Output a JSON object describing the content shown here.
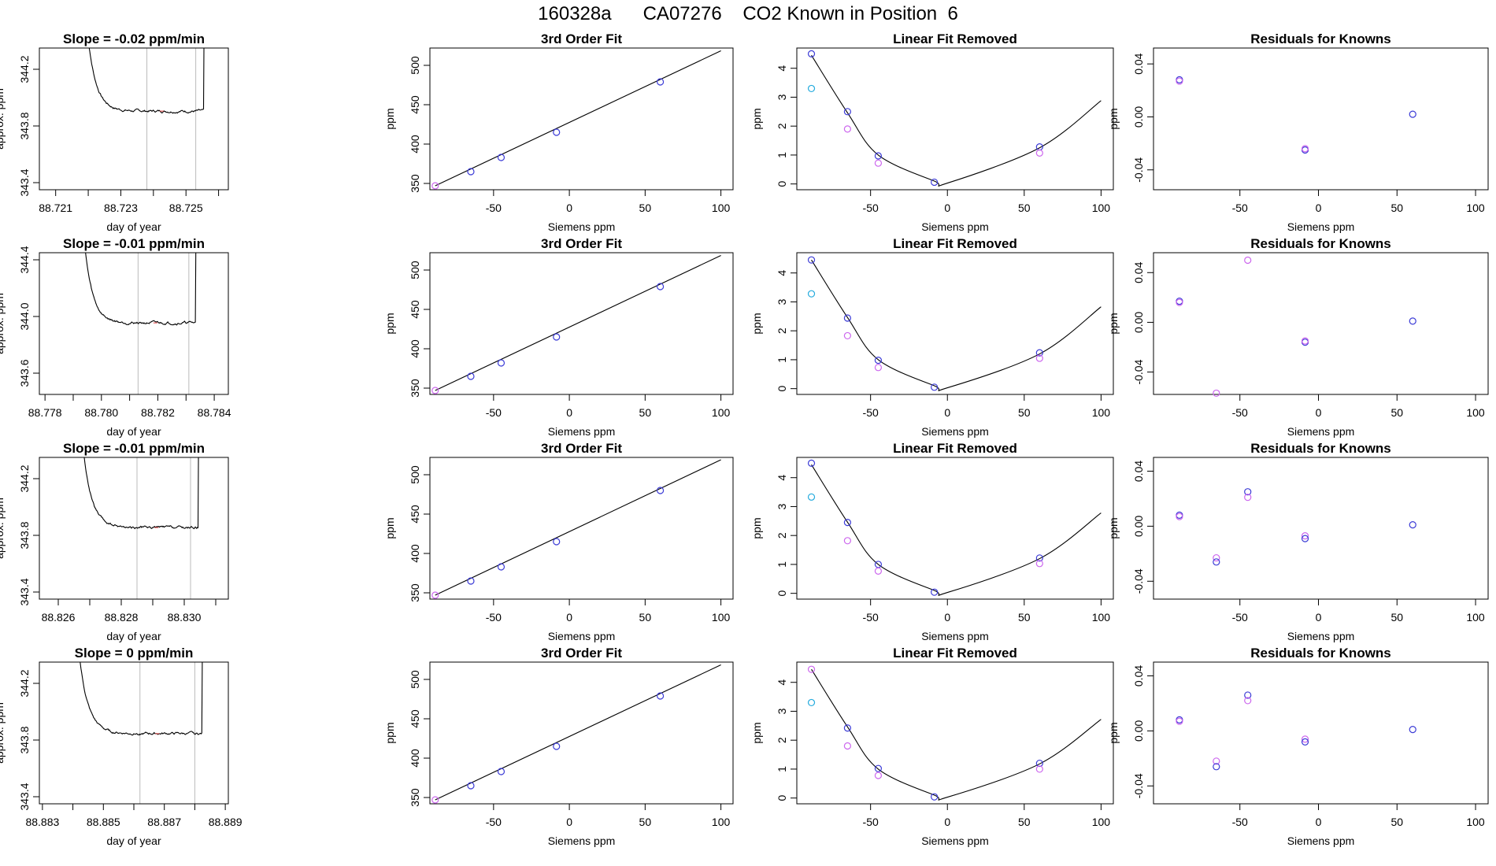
{
  "page": {
    "title": "160328a      CA07276    CO2 Known in Position  6"
  },
  "colors": {
    "known_dark": "#3b3bd6",
    "known_light": "#cc66ee",
    "outlier": "#22aadd",
    "red": "#e04040",
    "vline": "#bbbbbb",
    "line": "#000000"
  },
  "chart_data": [
    {
      "panel": "time",
      "row": 0,
      "type": "line",
      "title": "Slope =  -0.02  ppm/min",
      "xlabel": "day of year",
      "ylabel": "approx. ppm",
      "xlim": [
        88.7205,
        88.7263
      ],
      "ylim": [
        343.35,
        344.35
      ],
      "xticks": [
        88.721,
        88.722,
        88.723,
        88.724,
        88.725,
        88.726
      ],
      "xtick_labels": [
        "88.721",
        "",
        "88.723",
        "",
        "88.725",
        ""
      ],
      "yticks": [
        343.4,
        343.8,
        344.2
      ],
      "ytick_labels": [
        "343.4",
        "343.8",
        "344.2"
      ],
      "vlines": [
        88.7238,
        88.7253
      ],
      "curve": {
        "start": 88.7219,
        "end": 88.7256,
        "level": 343.905,
        "rise_to": 344.6
      }
    },
    {
      "panel": "fit",
      "row": 0,
      "type": "scatter",
      "title": "3rd Order Fit",
      "xlabel": "Siemens ppm",
      "ylabel": "ppm",
      "xlim": [
        -92,
        108
      ],
      "ylim": [
        342,
        522
      ],
      "xticks": [
        -50,
        0,
        50,
        100
      ],
      "yticks": [
        350,
        400,
        450,
        500
      ],
      "line": [
        [
          -88.5,
          347
        ],
        [
          100,
          518.5
        ]
      ],
      "points": [
        [
          -88.5,
          347,
          "light"
        ],
        [
          -65,
          365,
          "dark"
        ],
        [
          -45,
          383,
          "dark"
        ],
        [
          -8.5,
          415,
          "dark"
        ],
        [
          60,
          479,
          "dark"
        ]
      ]
    },
    {
      "panel": "linrem",
      "row": 0,
      "type": "scatter",
      "title": "Linear Fit Removed",
      "xlabel": "Siemens ppm",
      "ylabel": "ppm",
      "xlim": [
        -98,
        108
      ],
      "ylim": [
        -0.2,
        4.7
      ],
      "xticks": [
        -50,
        0,
        50,
        100
      ],
      "yticks": [
        0,
        1,
        2,
        3,
        4
      ],
      "curve": [
        [
          -88.5,
          4.45
        ],
        [
          -65,
          2.46
        ],
        [
          -45,
          1.0
        ],
        [
          -8.5,
          0.1
        ],
        [
          0,
          0.03
        ],
        [
          60,
          1.25
        ],
        [
          100,
          2.88
        ]
      ],
      "points": [
        [
          -88.5,
          4.5,
          "dark"
        ],
        [
          -88.5,
          3.3,
          "outlier"
        ],
        [
          -65,
          2.5,
          "dark"
        ],
        [
          -65,
          1.9,
          "light"
        ],
        [
          -45,
          0.97,
          "dark"
        ],
        [
          -45,
          0.72,
          "light"
        ],
        [
          -8.5,
          0.06,
          "dark"
        ],
        [
          60,
          1.28,
          "dark"
        ],
        [
          60,
          1.07,
          "light"
        ]
      ]
    },
    {
      "panel": "resid",
      "row": 0,
      "type": "scatter",
      "title": "Residuals for Knowns",
      "xlabel": "Siemens ppm",
      "ylabel": "ppm",
      "xlim": [
        -105,
        108
      ],
      "ylim": [
        -0.055,
        0.052
      ],
      "xticks": [
        -50,
        0,
        50,
        100
      ],
      "yticks": [
        -0.04,
        0,
        0.04
      ],
      "ytick_labels": [
        "-0.04",
        "0.00",
        "0.04"
      ],
      "points": [
        [
          -88.5,
          0.028,
          "dark"
        ],
        [
          -88.5,
          0.027,
          "light"
        ],
        [
          -8.5,
          -0.025,
          "dark"
        ],
        [
          -8.5,
          -0.024,
          "light"
        ],
        [
          60,
          0.002,
          "dark"
        ]
      ]
    },
    {
      "panel": "time",
      "row": 1,
      "type": "line",
      "title": "Slope =  -0.01  ppm/min",
      "xlabel": "day of year",
      "ylabel": "approx. ppm",
      "xlim": [
        88.7778,
        88.7845
      ],
      "ylim": [
        343.45,
        344.45
      ],
      "xticks": [
        88.778,
        88.779,
        88.78,
        88.781,
        88.782,
        88.783,
        88.784
      ],
      "xtick_labels": [
        "88.778",
        "",
        "88.780",
        "",
        "88.782",
        "",
        "88.784"
      ],
      "yticks": [
        343.6,
        344.0,
        344.4
      ],
      "ytick_labels": [
        "343.6",
        "344.0",
        "344.4"
      ],
      "vlines": [
        88.7813,
        88.7831
      ],
      "curve": {
        "start": 88.7793,
        "end": 88.7834,
        "level": 343.955,
        "rise_to": 344.7
      }
    },
    {
      "panel": "fit",
      "row": 1,
      "type": "scatter",
      "title": "3rd Order Fit",
      "xlabel": "Siemens ppm",
      "ylabel": "ppm",
      "xlim": [
        -92,
        108
      ],
      "ylim": [
        342,
        522
      ],
      "xticks": [
        -50,
        0,
        50,
        100
      ],
      "yticks": [
        350,
        400,
        450,
        500
      ],
      "line": [
        [
          -88.5,
          347
        ],
        [
          100,
          518.5
        ]
      ],
      "points": [
        [
          -88.5,
          347,
          "light"
        ],
        [
          -65,
          365,
          "dark"
        ],
        [
          -45,
          382,
          "dark"
        ],
        [
          -8.5,
          415,
          "dark"
        ],
        [
          60,
          479,
          "dark"
        ]
      ]
    },
    {
      "panel": "linrem",
      "row": 1,
      "type": "scatter",
      "title": "Linear Fit Removed",
      "xlabel": "Siemens ppm",
      "ylabel": "ppm",
      "xlim": [
        -98,
        108
      ],
      "ylim": [
        -0.2,
        4.7
      ],
      "xticks": [
        -50,
        0,
        50,
        100
      ],
      "yticks": [
        0,
        1,
        2,
        3,
        4
      ],
      "curve": [
        [
          -88.5,
          4.45
        ],
        [
          -65,
          2.46
        ],
        [
          -45,
          1.0
        ],
        [
          -8.5,
          0.1
        ],
        [
          0,
          0.03
        ],
        [
          60,
          1.2
        ],
        [
          100,
          2.83
        ]
      ],
      "points": [
        [
          -88.5,
          4.45,
          "dark"
        ],
        [
          -88.5,
          3.28,
          "outlier"
        ],
        [
          -65,
          2.44,
          "dark"
        ],
        [
          -65,
          1.83,
          "light"
        ],
        [
          -45,
          0.98,
          "dark"
        ],
        [
          -45,
          0.73,
          "light"
        ],
        [
          -8.5,
          0.05,
          "dark"
        ],
        [
          60,
          1.24,
          "dark"
        ],
        [
          60,
          1.05,
          "light"
        ]
      ]
    },
    {
      "panel": "resid",
      "row": 1,
      "type": "scatter",
      "title": "Residuals for Knowns",
      "xlabel": "Siemens ppm",
      "ylabel": "ppm",
      "xlim": [
        -105,
        108
      ],
      "ylim": [
        -0.058,
        0.056
      ],
      "xticks": [
        -50,
        0,
        50,
        100
      ],
      "yticks": [
        -0.04,
        0,
        0.04
      ],
      "ytick_labels": [
        "-0.04",
        "0.00",
        "0.04"
      ],
      "points": [
        [
          -88.5,
          0.017,
          "dark"
        ],
        [
          -88.5,
          0.016,
          "light"
        ],
        [
          -45,
          0.05,
          "light"
        ],
        [
          -65,
          -0.057,
          "light"
        ],
        [
          -8.5,
          -0.016,
          "dark"
        ],
        [
          -8.5,
          -0.015,
          "light"
        ],
        [
          60,
          0.001,
          "dark"
        ]
      ]
    },
    {
      "panel": "time",
      "row": 2,
      "type": "line",
      "title": "Slope =  -0.01  ppm/min",
      "xlabel": "day of year",
      "ylabel": "approx. ppm",
      "xlim": [
        88.8254,
        88.8314
      ],
      "ylim": [
        343.35,
        344.35
      ],
      "xticks": [
        88.826,
        88.827,
        88.828,
        88.829,
        88.83,
        88.831
      ],
      "xtick_labels": [
        "88.826",
        "",
        "88.828",
        "",
        "88.830",
        ""
      ],
      "yticks": [
        343.4,
        343.8,
        344.2
      ],
      "ytick_labels": [
        "343.4",
        "343.8",
        "344.2"
      ],
      "vlines": [
        88.8285,
        88.8302
      ],
      "curve": {
        "start": 88.8267,
        "end": 88.8305,
        "level": 343.855,
        "rise_to": 344.6
      }
    },
    {
      "panel": "fit",
      "row": 2,
      "type": "scatter",
      "title": "3rd Order Fit",
      "xlabel": "Siemens ppm",
      "ylabel": "ppm",
      "xlim": [
        -92,
        108
      ],
      "ylim": [
        342,
        522
      ],
      "xticks": [
        -50,
        0,
        50,
        100
      ],
      "yticks": [
        350,
        400,
        450,
        500
      ],
      "line": [
        [
          -88.5,
          347
        ],
        [
          100,
          519
        ]
      ],
      "points": [
        [
          -88.5,
          347,
          "light"
        ],
        [
          -65,
          365,
          "dark"
        ],
        [
          -45,
          383,
          "dark"
        ],
        [
          -8.5,
          415,
          "dark"
        ],
        [
          60,
          480,
          "dark"
        ]
      ]
    },
    {
      "panel": "linrem",
      "row": 2,
      "type": "scatter",
      "title": "Linear Fit Removed",
      "xlabel": "Siemens ppm",
      "ylabel": "ppm",
      "xlim": [
        -98,
        108
      ],
      "ylim": [
        -0.2,
        4.7
      ],
      "xticks": [
        -50,
        0,
        50,
        100
      ],
      "yticks": [
        0,
        1,
        2,
        3,
        4
      ],
      "curve": [
        [
          -88.5,
          4.45
        ],
        [
          -65,
          2.46
        ],
        [
          -45,
          1.0
        ],
        [
          -8.5,
          0.1
        ],
        [
          0,
          0.03
        ],
        [
          60,
          1.2
        ],
        [
          100,
          2.78
        ]
      ],
      "points": [
        [
          -88.5,
          4.5,
          "dark"
        ],
        [
          -88.5,
          3.33,
          "outlier"
        ],
        [
          -65,
          2.45,
          "dark"
        ],
        [
          -65,
          1.82,
          "light"
        ],
        [
          -45,
          1.0,
          "dark"
        ],
        [
          -45,
          0.77,
          "light"
        ],
        [
          -8.5,
          0.04,
          "dark"
        ],
        [
          60,
          1.22,
          "dark"
        ],
        [
          60,
          1.03,
          "light"
        ]
      ]
    },
    {
      "panel": "resid",
      "row": 2,
      "type": "scatter",
      "title": "Residuals for Knowns",
      "xlabel": "Siemens ppm",
      "ylabel": "ppm",
      "xlim": [
        -105,
        108
      ],
      "ylim": [
        -0.053,
        0.05
      ],
      "xticks": [
        -50,
        0,
        50,
        100
      ],
      "yticks": [
        -0.04,
        0,
        0.04
      ],
      "ytick_labels": [
        "-0.04",
        "0.00",
        "0.04"
      ],
      "points": [
        [
          -88.5,
          0.008,
          "dark"
        ],
        [
          -88.5,
          0.007,
          "light"
        ],
        [
          -65,
          -0.023,
          "light"
        ],
        [
          -65,
          -0.026,
          "dark"
        ],
        [
          -45,
          0.025,
          "dark"
        ],
        [
          -45,
          0.021,
          "light"
        ],
        [
          -8.5,
          -0.007,
          "light"
        ],
        [
          -8.5,
          -0.009,
          "dark"
        ],
        [
          60,
          0.001,
          "dark"
        ]
      ]
    },
    {
      "panel": "time",
      "row": 3,
      "type": "line",
      "title": "Slope =  0  ppm/min",
      "xlabel": "day of year",
      "ylabel": "approx. ppm",
      "xlim": [
        88.8829,
        88.8891
      ],
      "ylim": [
        343.35,
        344.35
      ],
      "xticks": [
        88.883,
        88.884,
        88.885,
        88.886,
        88.887,
        88.888,
        88.889
      ],
      "xtick_labels": [
        "88.883",
        "",
        "88.885",
        "",
        "88.887",
        "",
        "88.889"
      ],
      "yticks": [
        343.4,
        343.8,
        344.2
      ],
      "ytick_labels": [
        "343.4",
        "343.8",
        "344.2"
      ],
      "vlines": [
        88.8862,
        88.888
      ],
      "curve": {
        "start": 88.8841,
        "end": 88.8883,
        "level": 343.845,
        "rise_to": 344.6
      }
    },
    {
      "panel": "fit",
      "row": 3,
      "type": "scatter",
      "title": "3rd Order Fit",
      "xlabel": "Siemens ppm",
      "ylabel": "ppm",
      "xlim": [
        -92,
        108
      ],
      "ylim": [
        342,
        522
      ],
      "xticks": [
        -50,
        0,
        50,
        100
      ],
      "yticks": [
        350,
        400,
        450,
        500
      ],
      "line": [
        [
          -88.5,
          347
        ],
        [
          100,
          518.5
        ]
      ],
      "points": [
        [
          -88.5,
          347,
          "light"
        ],
        [
          -65,
          365,
          "dark"
        ],
        [
          -45,
          383,
          "dark"
        ],
        [
          -8.5,
          415,
          "dark"
        ],
        [
          60,
          479,
          "dark"
        ]
      ]
    },
    {
      "panel": "linrem",
      "row": 3,
      "type": "scatter",
      "title": "Linear Fit Removed",
      "xlabel": "Siemens ppm",
      "ylabel": "ppm",
      "xlim": [
        -98,
        108
      ],
      "ylim": [
        -0.2,
        4.7
      ],
      "xticks": [
        -50,
        0,
        50,
        100
      ],
      "yticks": [
        0,
        1,
        2,
        3,
        4
      ],
      "curve": [
        [
          -88.5,
          4.45
        ],
        [
          -65,
          2.46
        ],
        [
          -45,
          1.0
        ],
        [
          -8.5,
          0.1
        ],
        [
          0,
          0.03
        ],
        [
          60,
          1.18
        ],
        [
          100,
          2.72
        ]
      ],
      "points": [
        [
          -88.5,
          4.45,
          "light"
        ],
        [
          -88.5,
          3.3,
          "outlier"
        ],
        [
          -65,
          2.42,
          "dark"
        ],
        [
          -65,
          1.8,
          "light"
        ],
        [
          -45,
          1.02,
          "dark"
        ],
        [
          -45,
          0.78,
          "light"
        ],
        [
          -8.5,
          0.04,
          "dark"
        ],
        [
          60,
          1.2,
          "dark"
        ],
        [
          60,
          1.0,
          "light"
        ]
      ]
    },
    {
      "panel": "resid",
      "row": 3,
      "type": "scatter",
      "title": "Residuals for Knowns",
      "xlabel": "Siemens ppm",
      "ylabel": "ppm",
      "xlim": [
        -105,
        108
      ],
      "ylim": [
        -0.053,
        0.05
      ],
      "xticks": [
        -50,
        0,
        50,
        100
      ],
      "yticks": [
        -0.04,
        0,
        0.04
      ],
      "ytick_labels": [
        "-0.04",
        "0.00",
        "0.04"
      ],
      "points": [
        [
          -88.5,
          0.008,
          "dark"
        ],
        [
          -88.5,
          0.007,
          "light"
        ],
        [
          -65,
          -0.022,
          "light"
        ],
        [
          -65,
          -0.026,
          "dark"
        ],
        [
          -45,
          0.026,
          "dark"
        ],
        [
          -45,
          0.022,
          "light"
        ],
        [
          -8.5,
          -0.006,
          "light"
        ],
        [
          -8.5,
          -0.008,
          "dark"
        ],
        [
          60,
          0.001,
          "dark"
        ]
      ]
    }
  ]
}
